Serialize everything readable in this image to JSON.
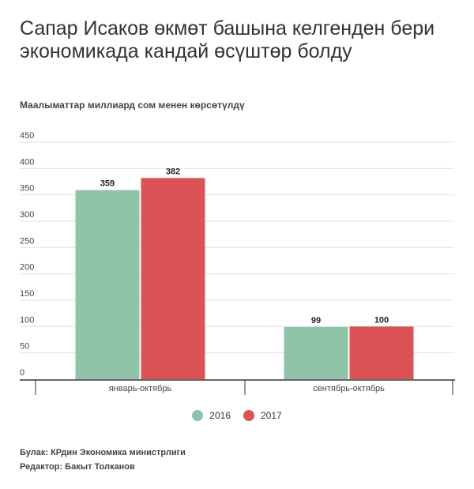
{
  "header": {
    "title": "Сапар Исаков өкмөт башына келгенден бери экономикада кандай өсүштөр болду",
    "subtitle": "Маалыматтар миллиард сом менен көрсөтүлдү"
  },
  "chart_data": {
    "type": "bar",
    "title": "Сапар Исаков өкмөт башына келгенден бери экономикада кандай өсүштөр болду",
    "subtitle": "Маалыматтар миллиард сом менен көрсөтүлдү",
    "categories": [
      "январь-октябрь",
      "сентябрь-октябрь"
    ],
    "series": [
      {
        "name": "2016",
        "values": [
          359,
          99
        ],
        "color": "#8ec3a7"
      },
      {
        "name": "2017",
        "values": [
          382,
          100
        ],
        "color": "#dc5356"
      }
    ],
    "yticks": [
      "0",
      "50",
      "100",
      "150",
      "200",
      "250",
      "300",
      "350",
      "400",
      "450"
    ],
    "ylim": [
      0,
      450
    ],
    "xlabel": "",
    "ylabel": "",
    "grid": true,
    "legend_position": "bottom-center"
  },
  "footer": {
    "source": "Булак: КРдин Экономика министрлиги",
    "editor": "Редактор: Бакыт Толканов"
  }
}
